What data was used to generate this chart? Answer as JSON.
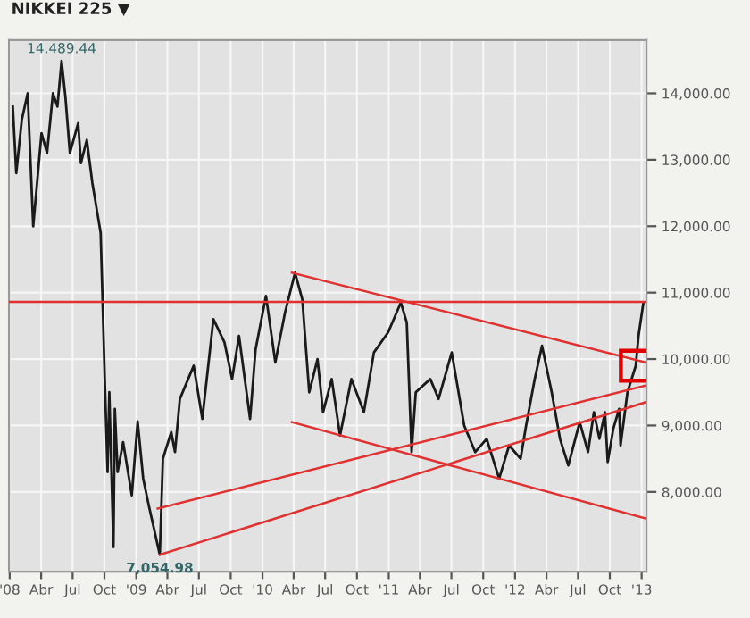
{
  "chart_data": {
    "type": "line",
    "title": "NIKKEI 225 ▼",
    "xlim": [
      "2007-12-30",
      "2013-01-15"
    ],
    "ylim": [
      6800,
      14800
    ],
    "xticks": [
      {
        "value": "2008-01-01",
        "label": "'08"
      },
      {
        "value": "2008-04-01",
        "label": "Abr"
      },
      {
        "value": "2008-07-01",
        "label": "Jul"
      },
      {
        "value": "2008-10-01",
        "label": "Oct"
      },
      {
        "value": "2009-01-01",
        "label": "'09"
      },
      {
        "value": "2009-04-01",
        "label": "Abr"
      },
      {
        "value": "2009-07-01",
        "label": "Jul"
      },
      {
        "value": "2009-10-01",
        "label": "Oct"
      },
      {
        "value": "2010-01-01",
        "label": "'10"
      },
      {
        "value": "2010-04-01",
        "label": "Abr"
      },
      {
        "value": "2010-07-01",
        "label": "Jul"
      },
      {
        "value": "2010-10-01",
        "label": "Oct"
      },
      {
        "value": "2011-01-01",
        "label": "'11"
      },
      {
        "value": "2011-04-01",
        "label": "Abr"
      },
      {
        "value": "2011-07-01",
        "label": "Jul"
      },
      {
        "value": "2011-10-01",
        "label": "Oct"
      },
      {
        "value": "2012-01-01",
        "label": "'12"
      },
      {
        "value": "2012-04-01",
        "label": "Abr"
      },
      {
        "value": "2012-07-01",
        "label": "Jul"
      },
      {
        "value": "2012-10-01",
        "label": "Oct"
      },
      {
        "value": "2013-01-01",
        "label": "'13"
      }
    ],
    "yticks": [
      {
        "value": 8000,
        "label": "8,000.00"
      },
      {
        "value": 9000,
        "label": "9,000.00"
      },
      {
        "value": 10000,
        "label": "10,000.00"
      },
      {
        "value": 11000,
        "label": "11,000.00"
      },
      {
        "value": 12000,
        "label": "12,000.00"
      },
      {
        "value": 13000,
        "label": "13,000.00"
      },
      {
        "value": 14000,
        "label": "14,000.00"
      }
    ],
    "grid": true,
    "legend": false,
    "annotations": [
      {
        "text": "14,489.44",
        "x": "2008-05-30",
        "y": 14489.44
      },
      {
        "text": "7,054.98",
        "x": "2009-03-10",
        "y": 7054.98
      }
    ],
    "ref_lines": [
      {
        "axis": "y",
        "value": 10860,
        "color": "#e03030"
      }
    ],
    "series": [
      {
        "color": "#1a1a1a",
        "x": [
          "2008-01-10",
          "2008-01-20",
          "2008-02-05",
          "2008-02-22",
          "2008-03-09",
          "2008-04-02",
          "2008-04-18",
          "2008-05-05",
          "2008-05-18",
          "2008-05-30",
          "2008-06-10",
          "2008-06-23",
          "2008-07-17",
          "2008-07-25",
          "2008-08-11",
          "2008-08-27",
          "2008-09-12",
          "2008-09-20",
          "2008-10-03",
          "2008-10-10",
          "2008-10-15",
          "2008-10-27",
          "2008-10-31",
          "2008-11-08",
          "2008-11-24",
          "2008-12-19",
          "2009-01-05",
          "2009-01-21",
          "2009-02-06",
          "2009-03-10",
          "2009-03-19",
          "2009-04-12",
          "2009-04-23",
          "2009-05-07",
          "2009-05-31",
          "2009-06-16",
          "2009-07-11",
          "2009-08-12",
          "2009-09-13",
          "2009-10-05",
          "2009-10-25",
          "2009-11-26",
          "2009-12-12",
          "2010-01-11",
          "2010-02-07",
          "2010-03-07",
          "2010-04-05",
          "2010-04-26",
          "2010-05-16",
          "2010-06-09",
          "2010-06-25",
          "2010-07-20",
          "2010-08-13",
          "2010-09-15",
          "2010-10-21",
          "2010-11-19",
          "2010-12-30",
          "2011-02-05",
          "2011-02-22",
          "2011-03-08",
          "2011-03-20",
          "2011-05-01",
          "2011-05-25",
          "2011-07-02",
          "2011-08-07",
          "2011-09-08",
          "2011-10-11",
          "2011-11-16",
          "2011-12-15",
          "2012-01-17",
          "2012-02-02",
          "2012-02-27",
          "2012-03-19",
          "2012-04-16",
          "2012-05-10",
          "2012-06-03",
          "2012-07-06",
          "2012-07-30",
          "2012-08-16",
          "2012-09-01",
          "2012-09-17",
          "2012-09-25",
          "2012-10-11",
          "2012-10-28",
          "2012-11-01",
          "2012-11-21",
          "2012-12-15",
          "2012-12-23",
          "2013-01-06"
        ],
        "values": [
          13800,
          12800,
          13600,
          14000,
          12000,
          13400,
          13100,
          14000,
          13800,
          14489.44,
          13950,
          13100,
          13550,
          12950,
          13300,
          12650,
          12150,
          11900,
          9500,
          8300,
          9500,
          7170,
          9250,
          8300,
          8750,
          7950,
          9060,
          8200,
          7800,
          7054.98,
          8500,
          8900,
          8600,
          9400,
          9700,
          9900,
          9100,
          10600,
          10250,
          9700,
          10350,
          9100,
          10150,
          10950,
          9950,
          10700,
          11300,
          10900,
          9500,
          10000,
          9200,
          9700,
          8850,
          9700,
          9200,
          10100,
          10400,
          10850,
          10550,
          8600,
          9500,
          9700,
          9400,
          10100,
          9000,
          8600,
          8800,
          8200,
          8700,
          8500,
          9000,
          9700,
          10200,
          9500,
          8800,
          8400,
          9050,
          8600,
          9200,
          8800,
          9200,
          8450,
          8950,
          9250,
          8700,
          9500,
          9900,
          10350,
          10850
        ]
      },
      {
        "color": "#e03030",
        "x": [
          "2010-03-27",
          "2013-01-12"
        ],
        "values": [
          11300,
          9950
        ]
      },
      {
        "color": "#e03030",
        "x": [
          "2010-03-27",
          "2013-01-12"
        ],
        "values": [
          9050,
          7600
        ]
      },
      {
        "color": "#e03030",
        "x": [
          "2009-03-04",
          "2013-01-12"
        ],
        "values": [
          7750,
          9600
        ]
      },
      {
        "color": "#e03030",
        "x": [
          "2009-03-10",
          "2013-01-12"
        ],
        "values": [
          7054.98,
          9350
        ]
      }
    ]
  }
}
